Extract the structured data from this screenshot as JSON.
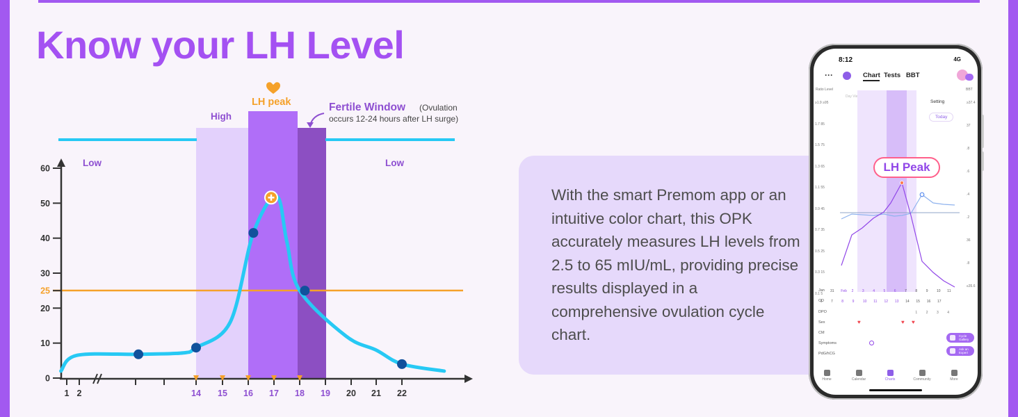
{
  "headline": "Know your LH Level",
  "colors": {
    "frame": "#a259f0",
    "headline": "#a451f2",
    "curve": "#27c9f4",
    "baseline_line": "#27c9f4",
    "threshold_line": "#f5a12a",
    "high_band": "#e3d1fc",
    "peak_band": "#b06ef8",
    "fertile_band": "#8c4fc2",
    "points": "#11519c",
    "label_purple": "#8e4fd1",
    "peak_label": "#f5a12a"
  },
  "chart_data": {
    "type": "line",
    "x_tick_labels": [
      "1",
      "2",
      "14",
      "15",
      "16",
      "17",
      "18",
      "19",
      "20",
      "21",
      "22"
    ],
    "y_tick_labels": [
      "0",
      "10",
      "20",
      "25",
      "30",
      "40",
      "50",
      "60"
    ],
    "ylim": [
      0,
      60
    ],
    "threshold": {
      "value": 25,
      "label": "25"
    },
    "zones": {
      "low_left": "Low",
      "low_right": "Low",
      "high": "High",
      "lh_peak": "LH peak",
      "fertile_window_title": "Fertile Window",
      "fertile_window_note_1": "(Ovulation",
      "fertile_window_note_2": "occurs 12-24 hours after LH surge)"
    },
    "series": [
      {
        "x": [
          0.3,
          1.8,
          12.1,
          13.6,
          14.0,
          15.3,
          16.2,
          17.1,
          17.5,
          18.0,
          19.8,
          21.0,
          22.0,
          23.6
        ],
        "values": [
          2,
          6.5,
          6.8,
          7.2,
          8.7,
          16,
          41.5,
          52,
          39,
          25,
          12,
          8,
          4,
          2
        ]
      }
    ],
    "highlighted_points": [
      {
        "x": 12.1,
        "y": 6.8
      },
      {
        "x": 14.0,
        "y": 8.7
      },
      {
        "x": 16.2,
        "y": 41.5
      },
      {
        "x": 18.2,
        "y": 25
      },
      {
        "x": 22.0,
        "y": 4
      }
    ],
    "peak_point": {
      "x": 17.0,
      "y": 52
    }
  },
  "description": "With the smart Premom app or an intuitive color chart, this OPK accurately measures LH levels from 2.5 to 65 mIU/mL, providing precise results displayed in a comprehensive ovulation cycle chart.",
  "phone": {
    "time": "8:12",
    "signal": "4G",
    "tabs": [
      "Chart",
      "Tests",
      "BBT"
    ],
    "axis_left_title": "Ratio Level",
    "axis_right_title": "BBT",
    "left_ticks": [
      "≥1.9 ≥95",
      "1.7 85",
      "1.5 75",
      "1.3 65",
      "1.1 55",
      "0.9 45",
      "0.7 35",
      "0.5 25",
      "0.3 15",
      "0.1 5"
    ],
    "right_ticks": [
      "≥37.4",
      "37",
      ".8",
      ".6",
      ".4",
      ".2",
      "36",
      ".8",
      "≤35.6"
    ],
    "day_view": "Day View",
    "setting": "Setting",
    "today": "Today",
    "callout": "LH Peak",
    "month": "Jan",
    "days": [
      "31",
      "Feb",
      "2",
      "3",
      "4",
      "5",
      "6",
      "7",
      "8",
      "9",
      "10",
      "11"
    ],
    "cd_label": "CD",
    "cd_values": [
      "6",
      "7",
      "8",
      "9",
      "10",
      "11",
      "12",
      "13",
      "14",
      "15",
      "16",
      "17"
    ],
    "dpo_label": "DPO",
    "dpo_values": [
      "1",
      "2",
      "3",
      "4"
    ],
    "rows": [
      "Sex",
      "CM",
      "Symptoms",
      "PdG/hCG"
    ],
    "buttons": [
      "Cycle Gallery",
      "Ask an Expert"
    ],
    "bottom_nav": [
      "Home",
      "Calendar",
      "Charts",
      "Community",
      "More"
    ]
  }
}
